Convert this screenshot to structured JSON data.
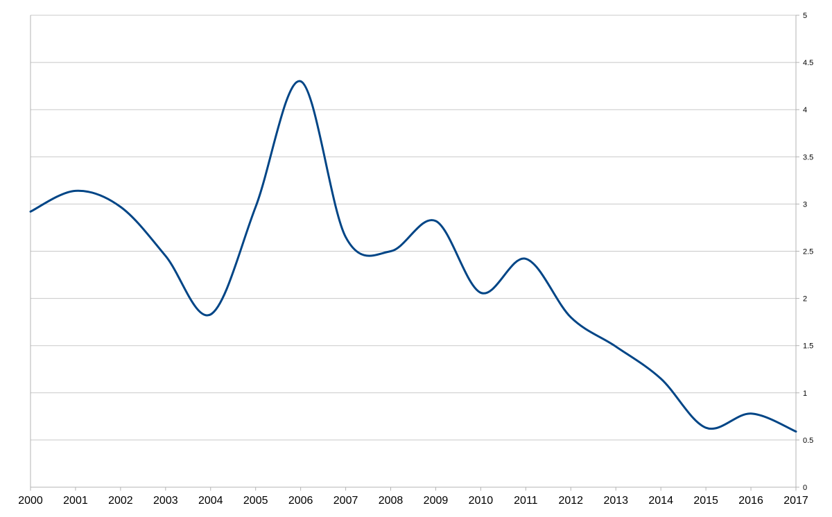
{
  "chart_data": {
    "type": "line",
    "title": "",
    "xlabel": "",
    "ylabel": "",
    "smoothed": true,
    "grid": true,
    "y_axis_side": "right",
    "legend": "none",
    "x": [
      2000,
      2001,
      2002,
      2003,
      2004,
      2005,
      2006,
      2007,
      2008,
      2009,
      2010,
      2011,
      2012,
      2013,
      2014,
      2015,
      2016,
      2017
    ],
    "x_tick_labels": [
      "2000",
      "2001",
      "2002",
      "2003",
      "2004",
      "2005",
      "2006",
      "2007",
      "2008",
      "2009",
      "2010",
      "2011",
      "2012",
      "2013",
      "2014",
      "2015",
      "2016",
      "2017"
    ],
    "y_ticks": [
      0,
      0.5,
      1,
      1.5,
      2,
      2.5,
      3,
      3.5,
      4,
      4.5,
      5
    ],
    "y_tick_labels": [
      "0",
      "0.5",
      "1",
      "1.5",
      "2",
      "2.5",
      "3",
      "3.5",
      "4",
      "4.5",
      "5"
    ],
    "xlim": [
      2000,
      2017
    ],
    "ylim": [
      0,
      5
    ],
    "series": [
      {
        "color": "#004586",
        "values": [
          2.92,
          3.14,
          2.97,
          2.45,
          1.83,
          2.97,
          4.3,
          2.65,
          2.5,
          2.82,
          2.06,
          2.42,
          1.8,
          1.49,
          1.15,
          0.63,
          0.78,
          0.59
        ]
      }
    ]
  }
}
